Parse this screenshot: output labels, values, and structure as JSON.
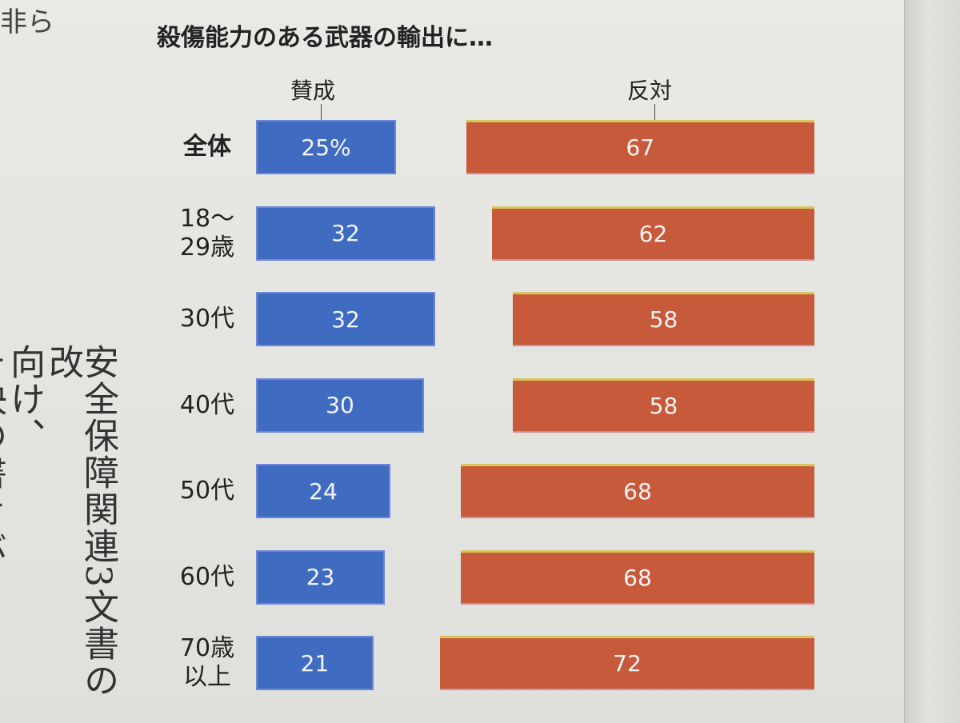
{
  "corner_text": "非ら",
  "side_text": [
    "安全保障関連3文書の改",
    "向け、",
    "そ決の書きぶり"
  ],
  "chart_data": {
    "type": "bar",
    "title": "殺傷能力のある武器の輸出に…",
    "categories": [
      "全体",
      "18〜29歳",
      "30代",
      "40代",
      "50代",
      "60代",
      "70歳以上"
    ],
    "category_lines": [
      [
        "全体"
      ],
      [
        "18〜",
        "29歳"
      ],
      [
        "30代"
      ],
      [
        "40代"
      ],
      [
        "50代"
      ],
      [
        "60代"
      ],
      [
        "70歳",
        "以上"
      ]
    ],
    "series": [
      {
        "name": "賛成",
        "values": [
          25,
          32,
          32,
          30,
          24,
          23,
          21
        ],
        "labels": [
          "25%",
          "32",
          "32",
          "30",
          "24",
          "23",
          "21"
        ],
        "color": "#3f6cc1"
      },
      {
        "name": "反対",
        "values": [
          67,
          62,
          58,
          58,
          68,
          68,
          72
        ],
        "labels": [
          "67",
          "62",
          "58",
          "58",
          "68",
          "68",
          "72"
        ],
        "color": "#c85a3c"
      }
    ],
    "unit": "%",
    "grid": false
  }
}
